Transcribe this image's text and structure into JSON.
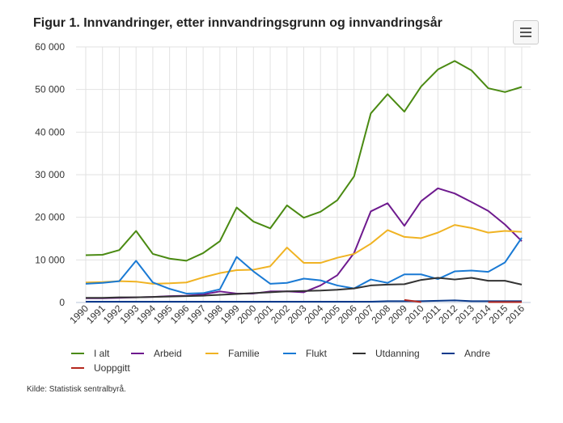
{
  "chart_data": {
    "type": "line",
    "title": "Figur 1. Innvandringer, etter innvandringsgrunn og innvandringsår",
    "source": "Kilde: Statistisk sentralbyrå.",
    "x": [
      1990,
      1991,
      1992,
      1993,
      1994,
      1995,
      1996,
      1997,
      1998,
      1999,
      2000,
      2001,
      2002,
      2003,
      2004,
      2005,
      2006,
      2007,
      2008,
      2009,
      2010,
      2011,
      2012,
      2013,
      2014,
      2015,
      2016
    ],
    "ylim": [
      0,
      60000
    ],
    "yticks": [
      0,
      10000,
      20000,
      30000,
      40000,
      50000,
      60000
    ],
    "ytick_labels": [
      "0",
      "10 000",
      "20 000",
      "30 000",
      "40 000",
      "50 000",
      "60 000"
    ],
    "grid": true,
    "legend": "bottom",
    "series": [
      {
        "name": "I alt",
        "color": "#4a8a12",
        "values": [
          11100,
          11200,
          12300,
          16800,
          11400,
          10300,
          9800,
          11600,
          14400,
          22300,
          19000,
          17400,
          22800,
          19900,
          21300,
          24000,
          29600,
          44400,
          48900,
          44800,
          50700,
          54700,
          56700,
          54500,
          50300,
          49400,
          50600
        ]
      },
      {
        "name": "Arbeid",
        "color": "#6e1a8e",
        "values": [
          1000,
          1000,
          1100,
          1200,
          1300,
          1500,
          1600,
          1900,
          2600,
          2100,
          2100,
          2600,
          2600,
          2400,
          4000,
          6400,
          11600,
          21400,
          23300,
          18000,
          23800,
          26800,
          25600,
          23600,
          21500,
          18300,
          14400
        ]
      },
      {
        "name": "Familie",
        "color": "#f0b323",
        "values": [
          4700,
          4800,
          5000,
          4900,
          4400,
          4500,
          4700,
          5900,
          6900,
          7600,
          7700,
          8500,
          12900,
          9300,
          9300,
          10500,
          11400,
          13800,
          17000,
          15400,
          15100,
          16400,
          18200,
          17500,
          16400,
          16800,
          16600
        ]
      },
      {
        "name": "Flukt",
        "color": "#1a7ad4",
        "values": [
          4400,
          4600,
          5000,
          9800,
          4700,
          3200,
          2100,
          2200,
          3100,
          10700,
          7300,
          4400,
          4600,
          5600,
          5200,
          4000,
          3300,
          5400,
          4600,
          6600,
          6600,
          5500,
          7300,
          7500,
          7200,
          9400,
          15200
        ]
      },
      {
        "name": "Utdanning",
        "color": "#333333",
        "values": [
          1100,
          1100,
          1200,
          1200,
          1300,
          1400,
          1500,
          1600,
          1800,
          2000,
          2200,
          2400,
          2600,
          2700,
          2800,
          3000,
          3300,
          4000,
          4200,
          4300,
          5300,
          5800,
          5400,
          5800,
          5100,
          5100,
          4200
        ]
      },
      {
        "name": "Andre",
        "color": "#0a3a8c",
        "values": [
          200,
          200,
          200,
          200,
          200,
          200,
          200,
          200,
          200,
          200,
          200,
          200,
          200,
          200,
          200,
          200,
          200,
          200,
          300,
          300,
          300,
          400,
          500,
          300,
          300,
          300,
          300
        ]
      },
      {
        "name": "Uoppgitt",
        "color": "#b5271e",
        "values": [
          null,
          null,
          null,
          null,
          null,
          null,
          null,
          null,
          null,
          null,
          null,
          null,
          null,
          null,
          null,
          null,
          null,
          null,
          null,
          600,
          100,
          null,
          null,
          null,
          100,
          100,
          100
        ]
      }
    ]
  }
}
